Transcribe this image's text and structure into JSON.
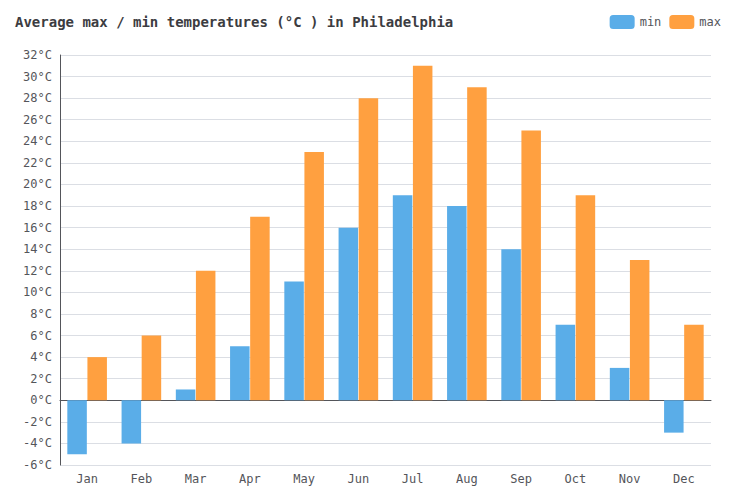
{
  "chart_data": {
    "type": "bar",
    "title": "Average max / min temperatures (°C ) in Philadelphia",
    "categories": [
      "Jan",
      "Feb",
      "Mar",
      "Apr",
      "May",
      "Jun",
      "Jul",
      "Aug",
      "Sep",
      "Oct",
      "Nov",
      "Dec"
    ],
    "series": [
      {
        "name": "min",
        "color": "#5AADE8",
        "values": [
          -5,
          -4,
          1,
          5,
          11,
          16,
          19,
          18,
          14,
          7,
          3,
          -3
        ]
      },
      {
        "name": "max",
        "color": "#FFA040",
        "values": [
          4,
          6,
          12,
          17,
          23,
          28,
          31,
          29,
          25,
          19,
          13,
          7
        ]
      }
    ],
    "ylim": [
      -6,
      32
    ],
    "yticks": [
      {
        "value": -6,
        "label": "-6°C"
      },
      {
        "value": -4,
        "label": "-4°C"
      },
      {
        "value": -2,
        "label": "-2°C"
      },
      {
        "value": 0,
        "label": "0°C"
      },
      {
        "value": 2,
        "label": "2°C"
      },
      {
        "value": 4,
        "label": "4°C"
      },
      {
        "value": 6,
        "label": "6°C"
      },
      {
        "value": 8,
        "label": "8°C"
      },
      {
        "value": 10,
        "label": "10°C"
      },
      {
        "value": 12,
        "label": "12°C"
      },
      {
        "value": 14,
        "label": "14°C"
      },
      {
        "value": 16,
        "label": "16°C"
      },
      {
        "value": 18,
        "label": "18°C"
      },
      {
        "value": 20,
        "label": "20°C"
      },
      {
        "value": 22,
        "label": "22°C"
      },
      {
        "value": 24,
        "label": "24°C"
      },
      {
        "value": 26,
        "label": "26°C"
      },
      {
        "value": 28,
        "label": "28°C"
      },
      {
        "value": 30,
        "label": "30°C"
      },
      {
        "value": 32,
        "label": "32°C"
      }
    ],
    "grid": true,
    "legend": "upper right"
  }
}
